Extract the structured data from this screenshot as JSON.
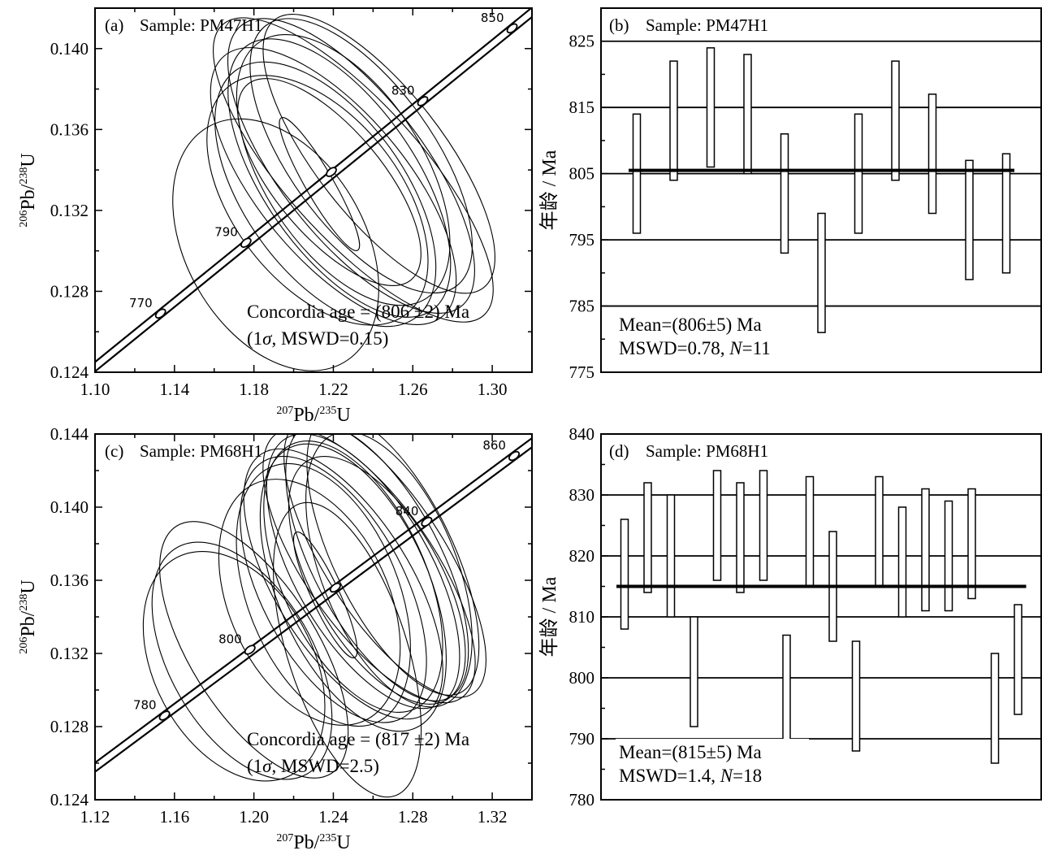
{
  "chart_data": [
    {
      "panel": "a",
      "type": "scatter",
      "label": "(a)",
      "sample_text": "Sample: PM47H1",
      "xlabel": {
        "sup1": "207",
        "base1": "Pb/",
        "sup2": "235",
        "base2": "U"
      },
      "ylabel": {
        "sup1": "206",
        "base1": "Pb/",
        "sup2": "238",
        "base2": "U"
      },
      "xlim": [
        1.1,
        1.32
      ],
      "ylim": [
        0.124,
        0.142
      ],
      "xticks": [
        "1.10",
        "1.14",
        "1.18",
        "1.22",
        "1.26",
        "1.30"
      ],
      "yticks": [
        "0.124",
        "0.128",
        "0.132",
        "0.136",
        "0.140"
      ],
      "concordia_labels": [
        "770",
        "790",
        "830",
        "850"
      ],
      "concordia_points": [
        {
          "age": 770,
          "x": 1.133,
          "y": 0.1269
        },
        {
          "age": 790,
          "x": 1.176,
          "y": 0.1304
        },
        {
          "age": 806,
          "x": 1.219,
          "y": 0.1339
        },
        {
          "age": 830,
          "x": 1.265,
          "y": 0.1374
        },
        {
          "age": 850,
          "x": 1.31,
          "y": 0.141
        }
      ],
      "ellipses": [
        {
          "cx": 1.191,
          "cy": 0.1303,
          "rx": 0.045,
          "ry": 0.0016,
          "angle": 30
        },
        {
          "cx": 1.212,
          "cy": 0.1325,
          "rx": 0.042,
          "ry": 0.0017,
          "angle": 38
        },
        {
          "cx": 1.216,
          "cy": 0.1328,
          "rx": 0.04,
          "ry": 0.0018,
          "angle": 36
        },
        {
          "cx": 1.22,
          "cy": 0.1332,
          "rx": 0.037,
          "ry": 0.002,
          "angle": 40
        },
        {
          "cx": 1.223,
          "cy": 0.1336,
          "rx": 0.038,
          "ry": 0.0019,
          "angle": 35
        },
        {
          "cx": 1.225,
          "cy": 0.134,
          "rx": 0.04,
          "ry": 0.0018,
          "angle": 33
        },
        {
          "cx": 1.229,
          "cy": 0.1342,
          "rx": 0.036,
          "ry": 0.0021,
          "angle": 38
        },
        {
          "cx": 1.23,
          "cy": 0.134,
          "rx": 0.034,
          "ry": 0.0023,
          "angle": 42
        },
        {
          "cx": 1.234,
          "cy": 0.1347,
          "rx": 0.036,
          "ry": 0.0019,
          "angle": 36
        },
        {
          "cx": 1.218,
          "cy": 0.1334,
          "rx": 0.027,
          "ry": 0.0015,
          "angle": 40
        },
        {
          "cx": 1.243,
          "cy": 0.1348,
          "rx": 0.032,
          "ry": 0.002,
          "angle": 38
        },
        {
          "cx": 1.213,
          "cy": 0.1333,
          "rx": 0.007,
          "ry": 0.0009,
          "angle": 30
        }
      ],
      "annotation": {
        "line1": "Concordia age = (806 ±2) Ma",
        "line2_pre": "(1",
        "line2_sigma": "σ",
        "line2_post": ", MSWD=0.15)"
      }
    },
    {
      "panel": "b",
      "type": "bar",
      "label": "(b)",
      "sample_text": "Sample: PM47H1",
      "ylabel": "年龄 / Ma",
      "ylim": [
        775,
        830
      ],
      "yticks": [
        "775",
        "785",
        "795",
        "805",
        "815",
        "825"
      ],
      "reference_lines": [
        785,
        795,
        805,
        815,
        825
      ],
      "mean_line": 805.5,
      "bars": [
        {
          "min": 796,
          "max": 814
        },
        {
          "min": 804,
          "max": 822
        },
        {
          "min": 806,
          "max": 824
        },
        {
          "min": 805,
          "max": 823
        },
        {
          "min": 793,
          "max": 811
        },
        {
          "min": 781,
          "max": 799
        },
        {
          "min": 796,
          "max": 814
        },
        {
          "min": 804,
          "max": 822
        },
        {
          "min": 799,
          "max": 817
        },
        {
          "min": 789,
          "max": 807
        },
        {
          "min": 790,
          "max": 808
        }
      ],
      "annotation": {
        "line1": "Mean=(806±5) Ma",
        "line2_pre": "MSWD=0.78, ",
        "line2_n": "N",
        "line2_post": "=11"
      }
    },
    {
      "panel": "c",
      "type": "scatter",
      "label": "(c)",
      "sample_text": "Sample: PM68H1",
      "xlabel": {
        "sup1": "207",
        "base1": "Pb/",
        "sup2": "235",
        "base2": "U"
      },
      "ylabel": {
        "sup1": "206",
        "base1": "Pb/",
        "sup2": "238",
        "base2": "U"
      },
      "xlim": [
        1.12,
        1.34
      ],
      "ylim": [
        0.124,
        0.144
      ],
      "xticks": [
        "1.12",
        "1.16",
        "1.20",
        "1.24",
        "1.28",
        "1.32"
      ],
      "yticks": [
        "0.124",
        "0.128",
        "0.132",
        "0.136",
        "0.140",
        "0.144"
      ],
      "concordia_labels": [
        "780",
        "800",
        "840",
        "860"
      ],
      "concordia_points": [
        {
          "age": 780,
          "x": 1.155,
          "y": 0.1286
        },
        {
          "age": 800,
          "x": 1.198,
          "y": 0.1322
        },
        {
          "age": 817,
          "x": 1.241,
          "y": 0.1356
        },
        {
          "age": 840,
          "x": 1.287,
          "y": 0.1392
        },
        {
          "age": 860,
          "x": 1.331,
          "y": 0.1428
        }
      ],
      "ellipses": [
        {
          "cx": 1.19,
          "cy": 0.1313,
          "rx": 0.04,
          "ry": 0.0016,
          "angle": 28
        },
        {
          "cx": 1.194,
          "cy": 0.1316,
          "rx": 0.036,
          "ry": 0.0017,
          "angle": 30
        },
        {
          "cx": 1.2,
          "cy": 0.1322,
          "rx": 0.032,
          "ry": 0.0019,
          "angle": 32
        },
        {
          "cx": 1.247,
          "cy": 0.1322,
          "rx": 0.03,
          "ry": 0.002,
          "angle": 18
        },
        {
          "cx": 1.228,
          "cy": 0.1348,
          "rx": 0.04,
          "ry": 0.0017,
          "angle": 25
        },
        {
          "cx": 1.235,
          "cy": 0.1352,
          "rx": 0.038,
          "ry": 0.0018,
          "angle": 22
        },
        {
          "cx": 1.24,
          "cy": 0.1355,
          "rx": 0.036,
          "ry": 0.0019,
          "angle": 28
        },
        {
          "cx": 1.245,
          "cy": 0.1358,
          "rx": 0.034,
          "ry": 0.002,
          "angle": 32
        },
        {
          "cx": 1.25,
          "cy": 0.1362,
          "rx": 0.036,
          "ry": 0.0019,
          "angle": 25
        },
        {
          "cx": 1.255,
          "cy": 0.1365,
          "rx": 0.034,
          "ry": 0.002,
          "angle": 30
        },
        {
          "cx": 1.258,
          "cy": 0.1368,
          "rx": 0.032,
          "ry": 0.0021,
          "angle": 35
        },
        {
          "cx": 1.262,
          "cy": 0.137,
          "rx": 0.032,
          "ry": 0.002,
          "angle": 28
        },
        {
          "cx": 1.266,
          "cy": 0.1372,
          "rx": 0.03,
          "ry": 0.0021,
          "angle": 33
        },
        {
          "cx": 1.27,
          "cy": 0.1374,
          "rx": 0.03,
          "ry": 0.002,
          "angle": 26
        },
        {
          "cx": 1.268,
          "cy": 0.1366,
          "rx": 0.034,
          "ry": 0.0019,
          "angle": 22
        },
        {
          "cx": 1.262,
          "cy": 0.136,
          "rx": 0.032,
          "ry": 0.0018,
          "angle": 30
        },
        {
          "cx": 1.25,
          "cy": 0.1356,
          "rx": 0.038,
          "ry": 0.002,
          "angle": 24
        },
        {
          "cx": 1.236,
          "cy": 0.1352,
          "rx": 0.007,
          "ry": 0.0009,
          "angle": 25
        }
      ],
      "annotation": {
        "line1": "Concordia age = (817 ±2) Ma",
        "line2_pre": "(1",
        "line2_sigma": "σ",
        "line2_post": ", MSWD=2.5)"
      }
    },
    {
      "panel": "d",
      "type": "bar",
      "label": "(d)",
      "sample_text": "Sample: PM68H1",
      "ylabel": "年龄 / Ma",
      "ylim": [
        780,
        840
      ],
      "yticks": [
        "780",
        "790",
        "800",
        "810",
        "820",
        "830",
        "840"
      ],
      "reference_lines": [
        790,
        800,
        810,
        820,
        830
      ],
      "mean_line": 815,
      "bars": [
        {
          "min": 808,
          "max": 826
        },
        {
          "min": 814,
          "max": 832
        },
        {
          "min": 810,
          "max": 830
        },
        {
          "min": 792,
          "max": 810
        },
        {
          "min": 816,
          "max": 834
        },
        {
          "min": 814,
          "max": 832
        },
        {
          "min": 816,
          "max": 834
        },
        {
          "min": 789,
          "max": 807
        },
        {
          "min": 815,
          "max": 833
        },
        {
          "min": 806,
          "max": 824
        },
        {
          "min": 788,
          "max": 806
        },
        {
          "min": 815,
          "max": 833
        },
        {
          "min": 810,
          "max": 828
        },
        {
          "min": 811,
          "max": 831
        },
        {
          "min": 811,
          "max": 829
        },
        {
          "min": 813,
          "max": 831
        },
        {
          "min": 786,
          "max": 804
        },
        {
          "min": 794,
          "max": 812
        }
      ],
      "annotation": {
        "line1": "Mean=(815±5) Ma",
        "line2_pre": "MSWD=1.4, ",
        "line2_n": "N",
        "line2_post": "=18"
      }
    }
  ]
}
